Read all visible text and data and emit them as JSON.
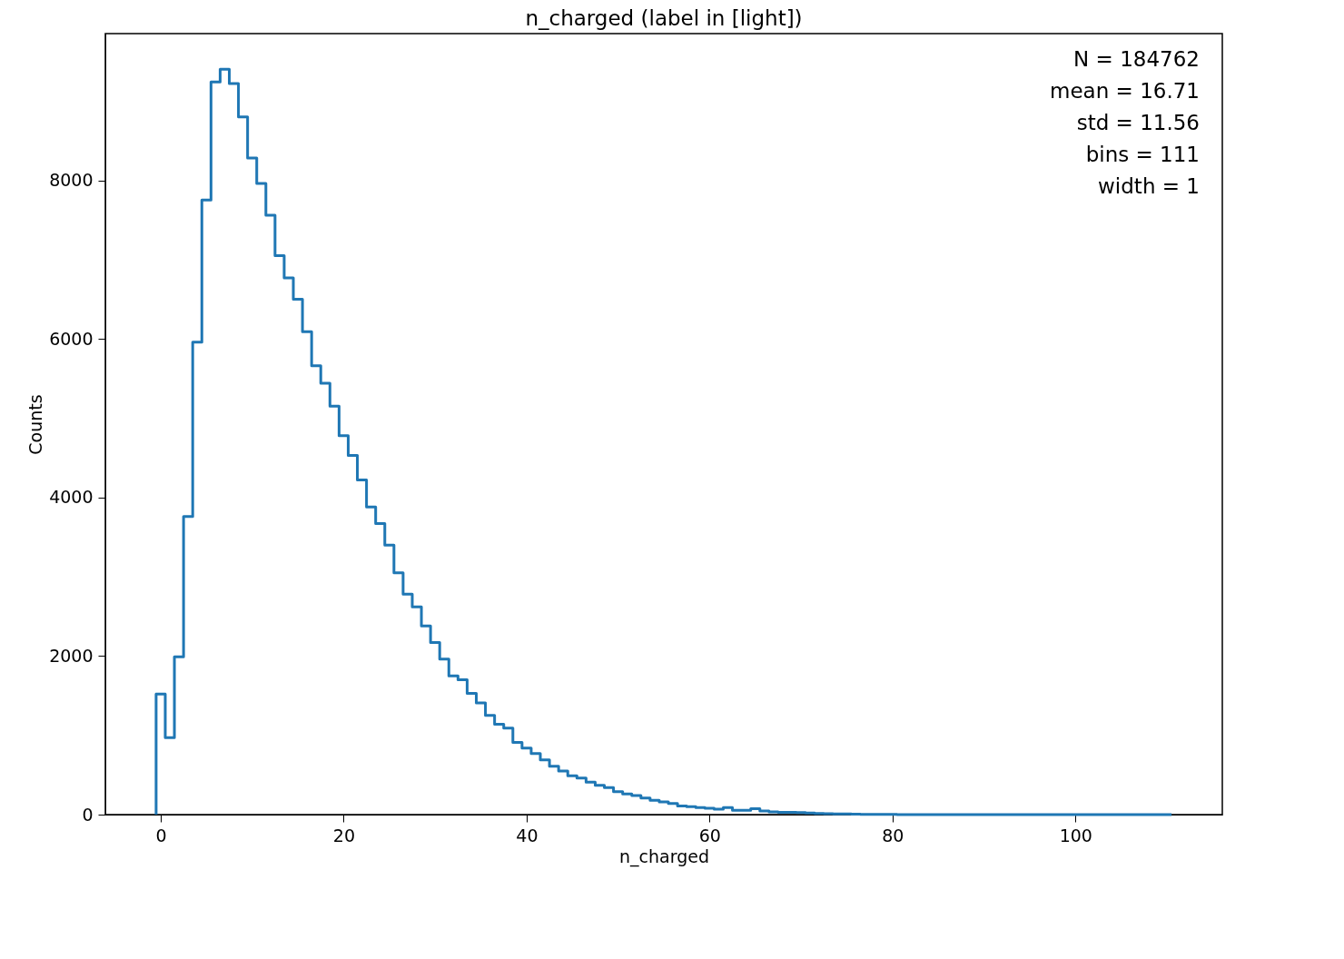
{
  "chart_data": {
    "type": "histogram",
    "title": "n_charged (label in [light])",
    "xlabel": "n_charged",
    "ylabel": "Counts",
    "bins": [
      -0.5,
      0.5,
      1.5,
      2.5,
      3.5,
      4.5,
      5.5,
      6.5,
      7.5,
      8.5,
      9.5,
      10.5,
      11.5,
      12.5,
      13.5,
      14.5,
      15.5,
      16.5,
      17.5,
      18.5,
      19.5,
      20.5,
      21.5,
      22.5,
      23.5,
      24.5,
      25.5,
      26.5,
      27.5,
      28.5,
      29.5,
      30.5,
      31.5,
      32.5,
      33.5,
      34.5,
      35.5,
      36.5,
      37.5,
      38.5,
      39.5,
      40.5,
      41.5,
      42.5,
      43.5,
      44.5,
      45.5,
      46.5,
      47.5,
      48.5,
      49.5,
      50.5,
      51.5,
      52.5,
      53.5,
      54.5,
      55.5,
      56.5,
      57.5,
      58.5,
      59.5,
      60.5,
      61.5,
      62.5,
      63.5,
      64.5,
      65.5,
      66.5,
      67.5,
      68.5,
      69.5,
      70.5,
      71.5,
      72.5,
      73.5,
      74.5,
      75.5,
      76.5,
      77.5,
      78.5,
      79.5,
      80.5,
      81.5,
      82.5,
      83.5,
      84.5,
      85.5,
      86.5,
      87.5,
      88.5,
      89.5,
      90.5,
      91.5,
      92.5,
      93.5,
      94.5,
      95.5,
      96.5,
      97.5,
      98.5,
      99.5,
      100.5,
      101.5,
      102.5,
      103.5,
      104.5,
      105.5,
      106.5,
      107.5,
      108.5,
      109.5,
      110.5
    ],
    "values": [
      1520,
      970,
      1990,
      3760,
      5960,
      7750,
      9240,
      9400,
      9220,
      8800,
      8280,
      7960,
      7560,
      7050,
      6770,
      6500,
      6090,
      5660,
      5440,
      5150,
      4780,
      4530,
      4220,
      3880,
      3670,
      3400,
      3050,
      2780,
      2620,
      2380,
      2170,
      1960,
      1750,
      1700,
      1530,
      1410,
      1250,
      1140,
      1090,
      910,
      840,
      770,
      690,
      610,
      550,
      490,
      460,
      410,
      370,
      340,
      290,
      260,
      240,
      210,
      180,
      160,
      140,
      110,
      100,
      90,
      80,
      70,
      90,
      55,
      55,
      75,
      45,
      35,
      30,
      30,
      25,
      20,
      15,
      12,
      10,
      8,
      5,
      4,
      3,
      2,
      2,
      1,
      1,
      1,
      1,
      0,
      0,
      0,
      0,
      0,
      0,
      0,
      0,
      0,
      0,
      0,
      0,
      0,
      0,
      0,
      0,
      0,
      0,
      0,
      0,
      0,
      0,
      0,
      0,
      0,
      0
    ],
    "color": "#1f77b4",
    "xlim": [
      -6.05,
      116.05
    ],
    "ylim": [
      0,
      9850
    ],
    "xticks": [
      0,
      20,
      40,
      60,
      80,
      100
    ],
    "yticks": [
      0,
      2000,
      4000,
      6000,
      8000
    ],
    "grid": false,
    "annotations": [
      "N = 184762",
      "mean = 16.71",
      "std = 11.56",
      "bins = 111",
      "width = 1"
    ]
  }
}
